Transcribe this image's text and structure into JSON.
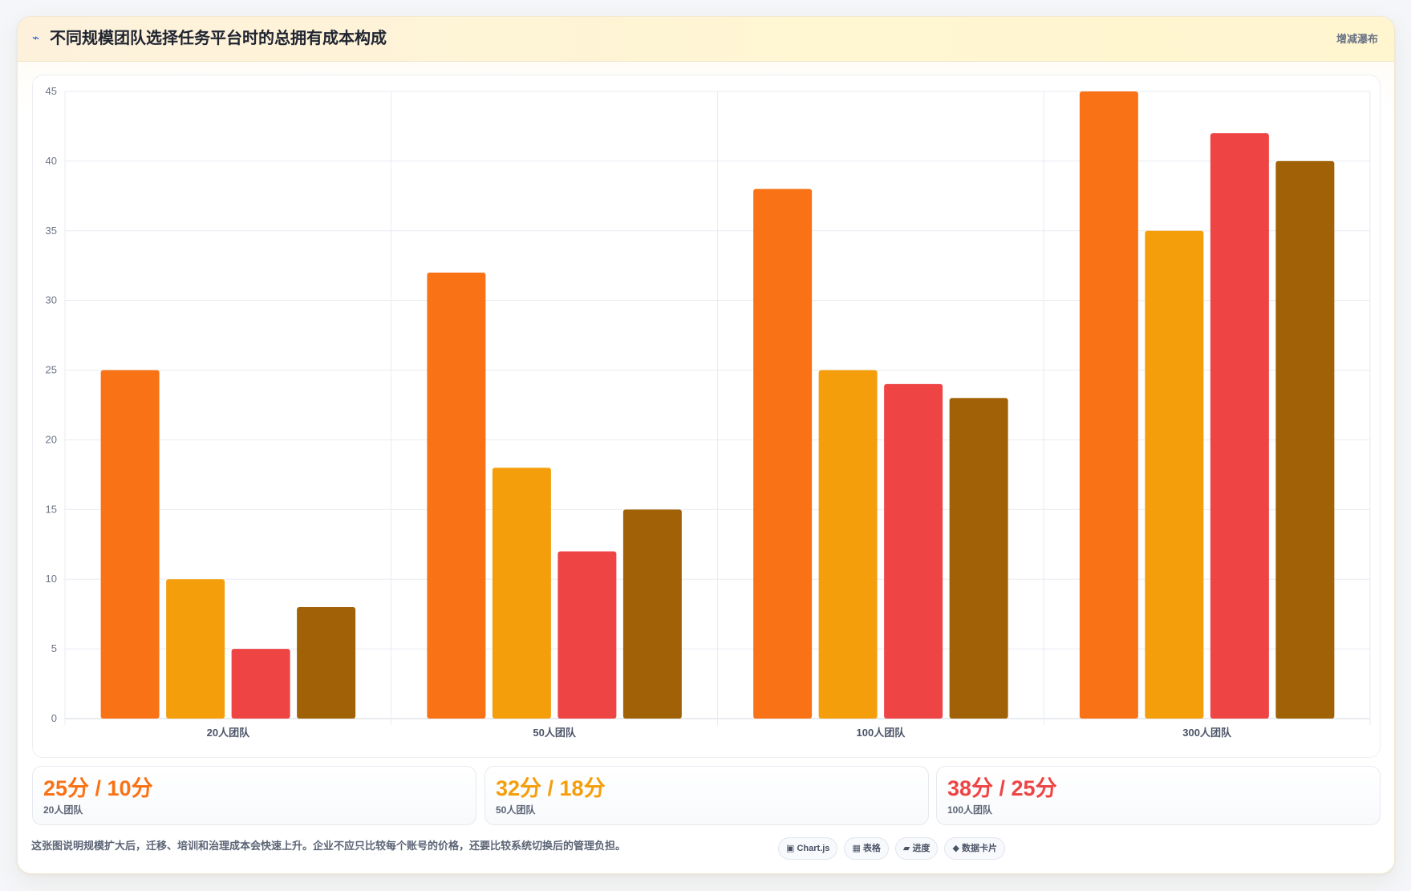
{
  "header": {
    "icon": "trend-zigzag-icon",
    "title": "不同规模团队选择任务平台时的总拥有成本构成",
    "badge": "增减瀑布"
  },
  "chart_data": {
    "type": "bar",
    "categories": [
      "20人团队",
      "50人团队",
      "100人团队",
      "300人团队"
    ],
    "series": [
      {
        "color": "#f97316",
        "values": [
          25,
          32,
          38,
          45
        ]
      },
      {
        "color": "#f59e0b",
        "values": [
          10,
          18,
          25,
          35
        ]
      },
      {
        "color": "#ef4444",
        "values": [
          5,
          12,
          24,
          42
        ]
      },
      {
        "color": "#a16207",
        "values": [
          8,
          15,
          23,
          40
        ]
      }
    ],
    "ylim": [
      0,
      45
    ],
    "yticks": [
      0,
      5,
      10,
      15,
      20,
      25,
      30,
      35,
      40,
      45
    ],
    "grid": true,
    "legend": "none"
  },
  "stats": [
    {
      "value": "25分 / 10分",
      "label": "20人团队",
      "color": "#f97316"
    },
    {
      "value": "32分 / 18分",
      "label": "50人团队",
      "color": "#f59e0b"
    },
    {
      "value": "38分 / 25分",
      "label": "100人团队",
      "color": "#ef4444"
    }
  ],
  "footer": {
    "note": "这张图说明规模扩大后，迁移、培训和治理成本会快速上升。企业不应只比较每个账号的价格，还要比较系统切换后的管理负担。",
    "chips": [
      {
        "icon": "chart-square-icon",
        "glyph": "▣",
        "label": "Chart.js"
      },
      {
        "icon": "table-grid-icon",
        "glyph": "▦",
        "label": "表格"
      },
      {
        "icon": "progress-icon",
        "glyph": "▰",
        "label": "进度"
      },
      {
        "icon": "data-card-icon",
        "glyph": "◆",
        "label": "数据卡片"
      }
    ]
  }
}
